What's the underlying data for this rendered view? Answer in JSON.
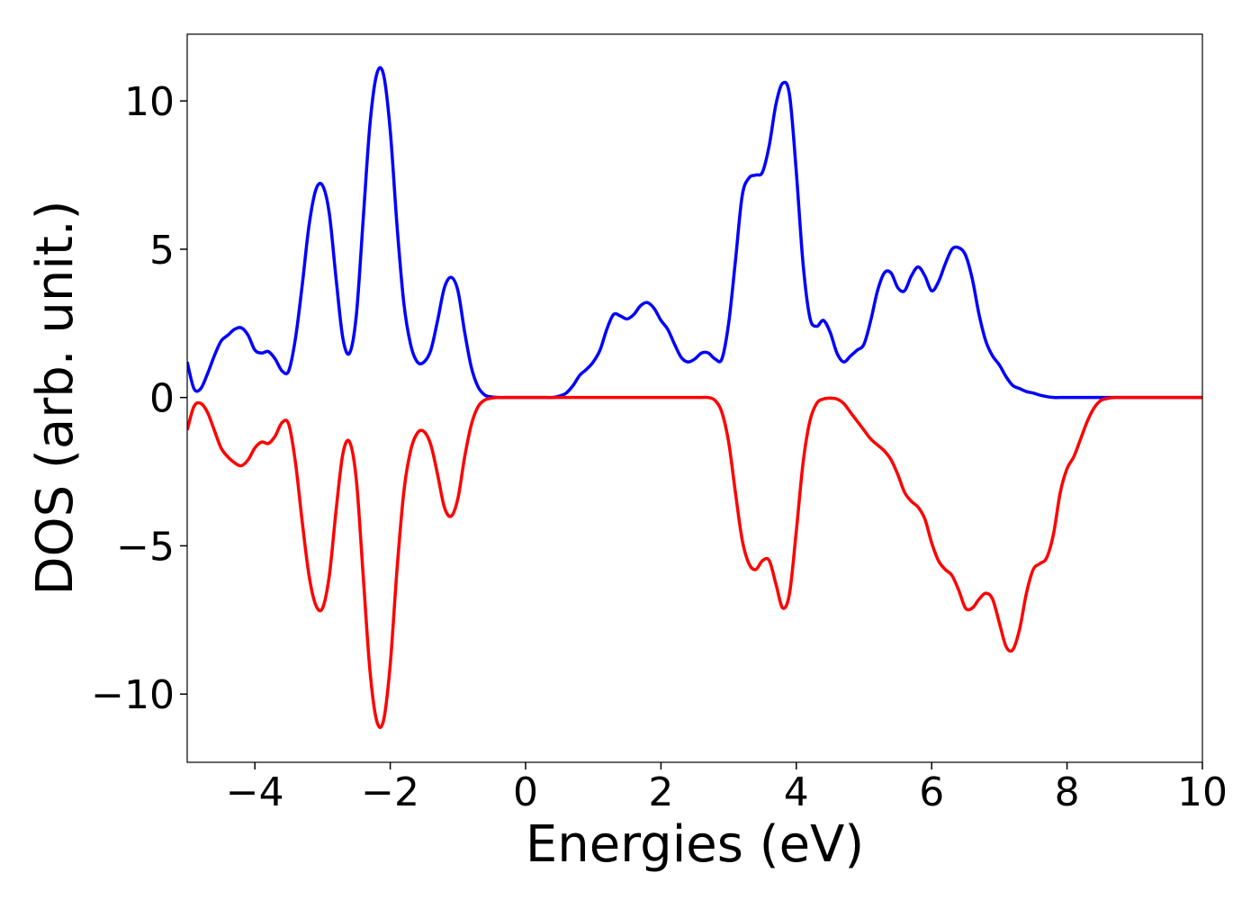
{
  "chart_data": {
    "type": "line",
    "xlabel": "Energies (eV)",
    "ylabel": "DOS (arb. unit.)",
    "xlim": [
      -5,
      10
    ],
    "ylim": [
      -12.3,
      12.25
    ],
    "xticks": [
      {
        "value": -4,
        "label": "−4"
      },
      {
        "value": -2,
        "label": "−2"
      },
      0,
      2,
      4,
      6,
      8,
      10
    ],
    "yticks": [
      {
        "value": -10,
        "label": "−10"
      },
      {
        "value": -5,
        "label": "−5"
      },
      0,
      5,
      10
    ],
    "grid": false,
    "x": [
      -5,
      -4.9,
      -4.8,
      -4.7,
      -4.6,
      -4.5,
      -4.4,
      -4.3,
      -4.2,
      -4.1,
      -4,
      -3.9,
      -3.8,
      -3.7,
      -3.6,
      -3.5,
      -3.4,
      -3.3,
      -3.2,
      -3.1,
      -3,
      -2.9,
      -2.8,
      -2.7,
      -2.6,
      -2.5,
      -2.4,
      -2.3,
      -2.2,
      -2.1,
      -2,
      -1.9,
      -1.8,
      -1.7,
      -1.6,
      -1.5,
      -1.4,
      -1.3,
      -1.2,
      -1.1,
      -1,
      -0.9,
      -0.8,
      -0.7,
      -0.6,
      -0.5,
      -0.4,
      -0.3,
      -0.2,
      -0.1,
      0,
      0.1,
      0.2,
      0.3,
      0.4,
      0.5,
      0.6,
      0.7,
      0.8,
      0.9,
      1,
      1.1,
      1.2,
      1.3,
      1.4,
      1.5,
      1.6,
      1.7,
      1.8,
      1.9,
      2,
      2.1,
      2.2,
      2.3,
      2.4,
      2.5,
      2.6,
      2.7,
      2.8,
      2.9,
      3,
      3.1,
      3.2,
      3.3,
      3.4,
      3.5,
      3.6,
      3.7,
      3.8,
      3.9,
      4,
      4.1,
      4.2,
      4.3,
      4.4,
      4.5,
      4.6,
      4.7,
      4.8,
      4.9,
      5,
      5.1,
      5.2,
      5.3,
      5.4,
      5.5,
      5.6,
      5.7,
      5.8,
      5.9,
      6,
      6.1,
      6.2,
      6.3,
      6.4,
      6.5,
      6.6,
      6.7,
      6.8,
      6.9,
      7,
      7.1,
      7.2,
      7.3,
      7.4,
      7.5,
      7.6,
      7.7,
      7.8,
      7.9,
      8,
      8.1,
      8.2,
      8.3,
      8.4,
      8.5,
      8.6,
      8.7,
      8.8,
      8.9,
      9,
      9.1,
      9.2,
      9.3,
      9.4,
      9.5,
      9.6,
      9.7,
      9.8,
      9.9,
      10
    ],
    "series": [
      {
        "color": "#0000ff",
        "values": [
          1.2,
          0.3,
          0.3,
          0.8,
          1.4,
          1.9,
          2.1,
          2.3,
          2.35,
          2.1,
          1.6,
          1.5,
          1.55,
          1.3,
          0.9,
          0.9,
          2.0,
          3.8,
          5.8,
          7.0,
          7.15,
          6.2,
          4.0,
          2.0,
          1.5,
          2.8,
          6.0,
          9.2,
          10.9,
          10.9,
          9.0,
          5.8,
          3.2,
          1.8,
          1.2,
          1.2,
          1.6,
          2.6,
          3.7,
          4.05,
          3.6,
          2.2,
          1.0,
          0.35,
          0.08,
          0.02,
          0,
          0,
          0,
          0,
          0,
          0,
          0,
          0,
          0,
          0.05,
          0.15,
          0.4,
          0.75,
          0.95,
          1.2,
          1.6,
          2.3,
          2.8,
          2.75,
          2.65,
          2.8,
          3.1,
          3.2,
          3.0,
          2.6,
          2.3,
          1.8,
          1.35,
          1.2,
          1.3,
          1.5,
          1.5,
          1.3,
          1.3,
          2.5,
          4.6,
          6.8,
          7.4,
          7.5,
          7.6,
          8.5,
          9.9,
          10.6,
          10.2,
          7.6,
          4.5,
          2.7,
          2.4,
          2.6,
          2.2,
          1.5,
          1.2,
          1.4,
          1.6,
          1.8,
          2.6,
          3.6,
          4.2,
          4.2,
          3.7,
          3.6,
          4.1,
          4.4,
          4.1,
          3.6,
          3.9,
          4.5,
          5.0,
          5.05,
          4.8,
          4.0,
          2.8,
          1.9,
          1.4,
          1.1,
          0.7,
          0.4,
          0.3,
          0.2,
          0.15,
          0.08,
          0.03,
          0,
          0,
          0,
          0,
          0,
          0,
          0,
          0,
          0,
          0,
          0,
          0,
          0,
          0,
          0,
          0,
          0,
          0,
          0,
          0,
          0,
          0,
          0
        ]
      },
      {
        "color": "#ff0000",
        "values": [
          -1.1,
          -0.3,
          -0.2,
          -0.5,
          -1.1,
          -1.7,
          -2.0,
          -2.2,
          -2.3,
          -2.1,
          -1.7,
          -1.5,
          -1.55,
          -1.3,
          -0.85,
          -0.9,
          -2.2,
          -4.2,
          -6.0,
          -7.0,
          -7.1,
          -6.0,
          -3.8,
          -1.9,
          -1.5,
          -2.8,
          -6.0,
          -9.2,
          -10.9,
          -10.9,
          -9.0,
          -5.8,
          -3.2,
          -1.8,
          -1.2,
          -1.15,
          -1.6,
          -2.6,
          -3.7,
          -4.0,
          -3.4,
          -2.0,
          -0.9,
          -0.3,
          -0.08,
          -0.02,
          0,
          0,
          0,
          0,
          0,
          0,
          0,
          0,
          0,
          0,
          0,
          0,
          0,
          0,
          0,
          0,
          0,
          0,
          0,
          0,
          0,
          0,
          0,
          0,
          0,
          0,
          0,
          0,
          0,
          0,
          0,
          0,
          -0.1,
          -0.5,
          -1.5,
          -3.2,
          -4.8,
          -5.6,
          -5.8,
          -5.5,
          -5.5,
          -6.3,
          -7.1,
          -6.6,
          -4.5,
          -2.2,
          -0.8,
          -0.2,
          -0.05,
          -0.02,
          -0.05,
          -0.2,
          -0.5,
          -0.8,
          -1.1,
          -1.4,
          -1.6,
          -1.8,
          -2.1,
          -2.6,
          -3.2,
          -3.5,
          -3.7,
          -4.1,
          -4.9,
          -5.5,
          -5.8,
          -6.0,
          -6.5,
          -7.1,
          -7.1,
          -6.8,
          -6.6,
          -6.8,
          -7.6,
          -8.4,
          -8.5,
          -7.8,
          -6.6,
          -5.8,
          -5.6,
          -5.4,
          -4.6,
          -3.2,
          -2.4,
          -2.0,
          -1.4,
          -0.8,
          -0.35,
          -0.1,
          -0.03,
          0,
          0,
          0,
          0,
          0,
          0,
          0,
          0,
          0,
          0,
          0,
          0,
          0,
          0
        ]
      }
    ]
  }
}
